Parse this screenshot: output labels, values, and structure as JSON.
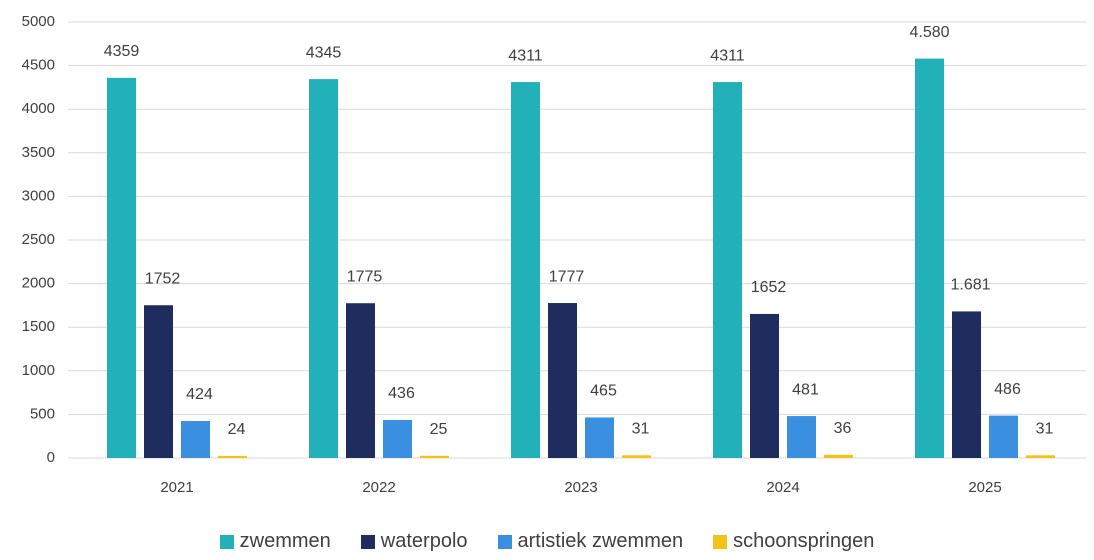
{
  "chart_data": {
    "type": "bar",
    "categories": [
      "2021",
      "2022",
      "2023",
      "2024",
      "2025"
    ],
    "series": [
      {
        "name": "zwemmen",
        "color": "#22b0b9",
        "values": [
          4359,
          4345,
          4311,
          4311,
          4580
        ],
        "value_labels": [
          "4359",
          "4345",
          "4311",
          "4311",
          "4.580"
        ]
      },
      {
        "name": "waterpolo",
        "color": "#1f2d5e",
        "values": [
          1752,
          1775,
          1777,
          1652,
          1681
        ],
        "value_labels": [
          "1752",
          "1775",
          "1777",
          "1652",
          "1.681"
        ]
      },
      {
        "name": "artistiek zwemmen",
        "color": "#3a8fe0",
        "values": [
          424,
          436,
          465,
          481,
          486
        ]
      },
      {
        "name": "schoonspringen",
        "color": "#f5c316",
        "values": [
          24,
          25,
          31,
          36,
          31
        ]
      }
    ],
    "ylim": [
      0,
      5000
    ],
    "yticks": [
      0,
      500,
      1000,
      1500,
      2000,
      2500,
      3000,
      3500,
      4000,
      4500,
      5000
    ],
    "grid": true,
    "legend": "bottom"
  }
}
